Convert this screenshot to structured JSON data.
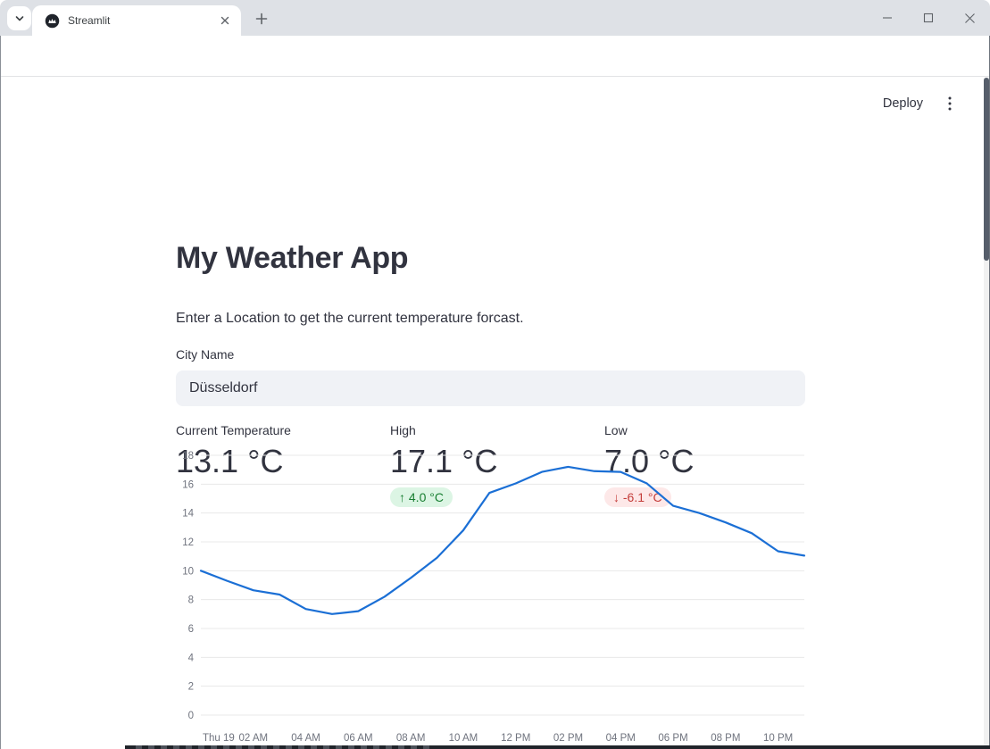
{
  "browser": {
    "tab_title": "Streamlit",
    "url": "localhost:8501"
  },
  "app": {
    "deploy_label": "Deploy",
    "title": "My Weather App",
    "subtitle": "Enter a Location to get the current temperature forcast.",
    "city_input": {
      "label": "City Name",
      "value": "Düsseldorf"
    },
    "metrics": [
      {
        "label": "Current Temperature",
        "value": "13.1 °C"
      },
      {
        "label": "High",
        "value": "17.1 °C",
        "delta": "4.0 °C",
        "delta_arrow": "↑",
        "direction": "up"
      },
      {
        "label": "Low",
        "value": "7.0 °C",
        "delta": "-6.1 °C",
        "delta_arrow": "↓",
        "direction": "down"
      }
    ],
    "colors": {
      "text": "#31333f",
      "input_background": "#f0f2f6",
      "delta_up_text": "#177e31",
      "delta_up_background": "#dcf5e4",
      "delta_down_text": "#c43c39",
      "delta_down_background": "#fde8e8"
    }
  },
  "chart_data": {
    "type": "line",
    "x": [
      0,
      1,
      2,
      3,
      4,
      5,
      6,
      7,
      8,
      9,
      10,
      11,
      12,
      13,
      14,
      15,
      16,
      17,
      18,
      19,
      20,
      21,
      22,
      23
    ],
    "values": [
      10.0,
      9.3,
      8.65,
      8.35,
      7.35,
      7.0,
      7.2,
      8.2,
      9.5,
      10.9,
      12.8,
      15.4,
      16.05,
      16.85,
      17.2,
      16.9,
      16.85,
      16.05,
      14.5,
      14.0,
      13.35,
      12.6,
      11.35,
      11.05
    ],
    "x_tick_hours": [
      0,
      2,
      4,
      6,
      8,
      10,
      12,
      14,
      16,
      18,
      20,
      22
    ],
    "x_tick_labels": [
      "Thu 19",
      "02 AM",
      "04 AM",
      "06 AM",
      "08 AM",
      "10 AM",
      "12 PM",
      "02 PM",
      "04 PM",
      "06 PM",
      "08 PM",
      "10 PM"
    ],
    "y_ticks": [
      0,
      2,
      4,
      6,
      8,
      10,
      12,
      14,
      16,
      18
    ],
    "xlim": [
      0,
      23
    ],
    "ylim": [
      0,
      18
    ],
    "grid": true,
    "legend": false,
    "title": "",
    "xlabel": "",
    "ylabel": "",
    "line_color": "#1b6fd5",
    "grid_color": "#e8e8e8",
    "axis_label_color": "#6f737e"
  }
}
